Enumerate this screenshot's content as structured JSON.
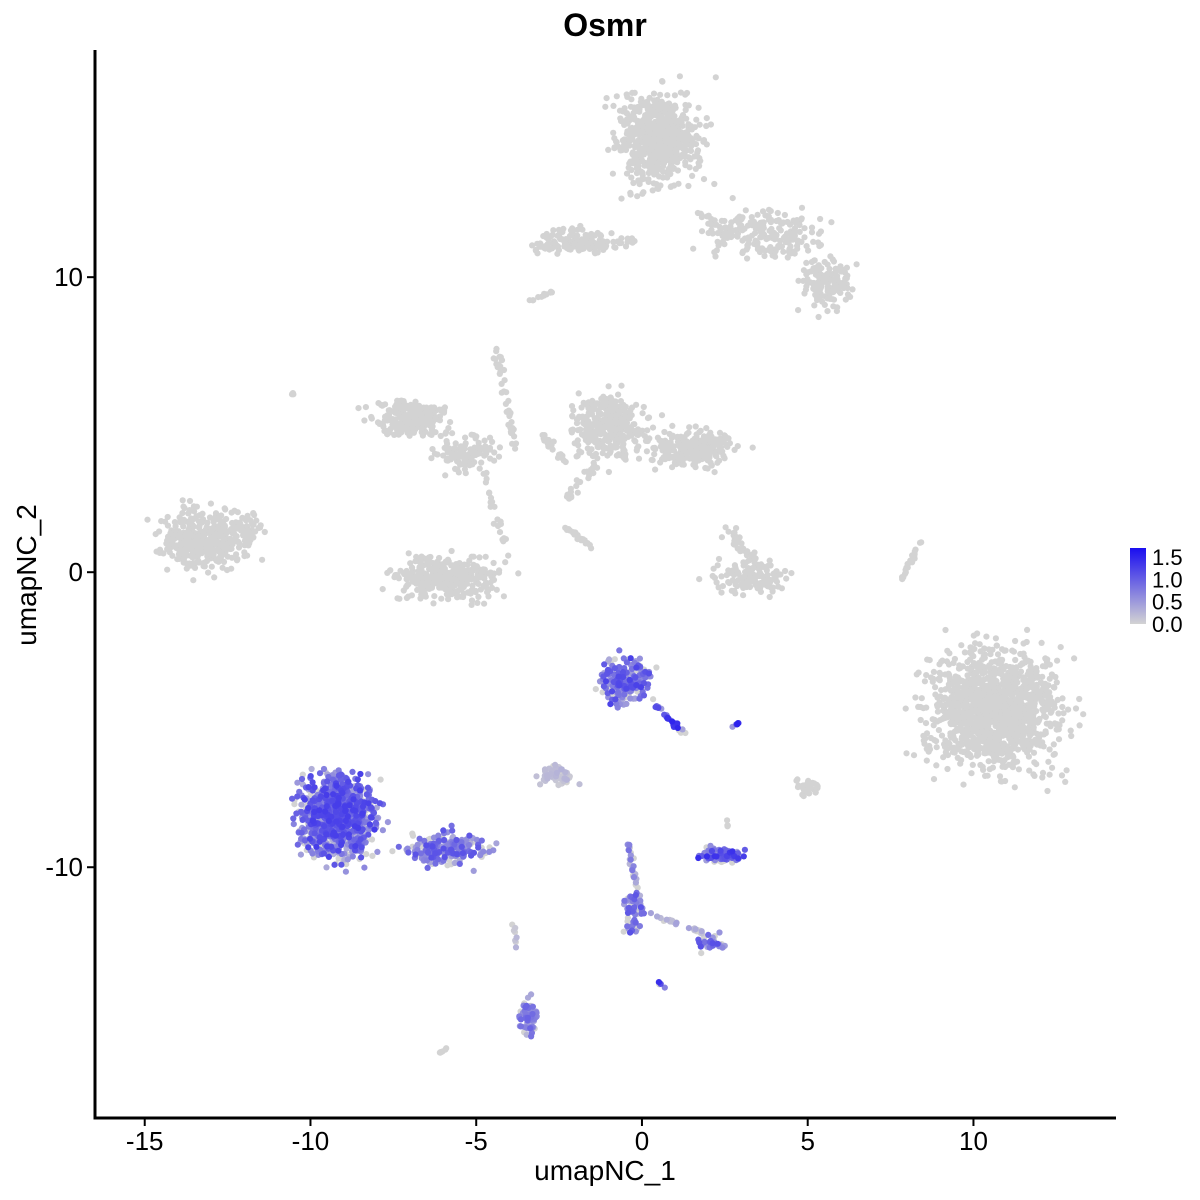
{
  "chart_data": {
    "type": "scatter",
    "title": "Osmr",
    "xlabel": "umapNC_1",
    "ylabel": "umapNC_2",
    "xlim": [
      -16.5,
      14.3
    ],
    "ylim": [
      -18.5,
      17.7
    ],
    "xticks": [
      -15,
      -10,
      -5,
      0,
      5,
      10
    ],
    "xtick_labels": [
      "-15",
      "-10",
      "-5",
      "0",
      "5",
      "10"
    ],
    "yticks": [
      -10,
      0,
      10
    ],
    "ytick_labels": [
      "-10",
      "0",
      "10"
    ],
    "grid": false,
    "legend": {
      "type": "colorbar",
      "placement": "right",
      "min": 0,
      "max": 1.7,
      "ticks": [
        1.5,
        1.0,
        0.5,
        0.0
      ],
      "tick_labels": [
        "1.5",
        "1.0",
        "0.5",
        "0.0"
      ],
      "color_low": "#d3d3d3",
      "color_high": "#1a0ef0"
    },
    "colors": {
      "low": "#d3d3d3",
      "high": "#1a0ef0",
      "axis": "#000000"
    },
    "clusters": [
      {
        "cx": 0.5,
        "cy": 14.7,
        "sx": 1.1,
        "sy": 1.2,
        "n": 650,
        "expr": 0
      },
      {
        "cx": 3.7,
        "cy": 11.5,
        "sx": 1.4,
        "sy": 0.7,
        "n": 180,
        "expr": 0
      },
      {
        "cx": 5.6,
        "cy": 9.8,
        "sx": 0.6,
        "sy": 0.7,
        "n": 130,
        "expr": 0
      },
      {
        "cx": -2.0,
        "cy": 11.2,
        "sx": 1.0,
        "sy": 0.35,
        "n": 110,
        "expr": 0
      },
      {
        "cx": -13.3,
        "cy": 1.1,
        "sx": 1.0,
        "sy": 0.8,
        "n": 420,
        "expr": 0
      },
      {
        "cx": -12.0,
        "cy": 1.4,
        "sx": 0.5,
        "sy": 0.6,
        "n": 60,
        "expr": 0
      },
      {
        "cx": -7.0,
        "cy": 5.2,
        "sx": 0.9,
        "sy": 0.5,
        "n": 240,
        "expr": 0
      },
      {
        "cx": -5.3,
        "cy": 4.0,
        "sx": 0.8,
        "sy": 0.5,
        "n": 110,
        "expr": 0
      },
      {
        "cx": -5.9,
        "cy": -0.2,
        "sx": 1.3,
        "sy": 0.55,
        "n": 380,
        "expr": 0
      },
      {
        "cx": -1.0,
        "cy": 4.9,
        "sx": 0.9,
        "sy": 0.9,
        "n": 330,
        "expr": 0
      },
      {
        "cx": 1.5,
        "cy": 4.2,
        "sx": 1.1,
        "sy": 0.55,
        "n": 250,
        "expr": 0
      },
      {
        "cx": 3.3,
        "cy": -0.2,
        "sx": 0.9,
        "sy": 0.45,
        "n": 140,
        "expr": 0
      },
      {
        "cx": 10.6,
        "cy": -4.6,
        "sx": 1.6,
        "sy": 1.6,
        "n": 1300,
        "expr": 0
      },
      {
        "cx": -0.5,
        "cy": -3.7,
        "sx": 0.6,
        "sy": 0.6,
        "n": 230,
        "expr": 0.45
      },
      {
        "cx": -9.2,
        "cy": -8.3,
        "sx": 0.9,
        "sy": 1.1,
        "n": 1100,
        "expr": 0.45
      },
      {
        "cx": -6.0,
        "cy": -9.4,
        "sx": 1.0,
        "sy": 0.45,
        "n": 230,
        "expr": 0.4
      },
      {
        "cx": 2.4,
        "cy": -9.6,
        "sx": 0.55,
        "sy": 0.22,
        "n": 110,
        "expr": 0.5
      },
      {
        "cx": -2.6,
        "cy": -6.9,
        "sx": 0.4,
        "sy": 0.3,
        "n": 60,
        "expr": 0.1
      },
      {
        "cx": -3.4,
        "cy": -15.1,
        "sx": 0.2,
        "sy": 0.6,
        "n": 70,
        "expr": 0.35
      },
      {
        "cx": 2.1,
        "cy": -12.6,
        "sx": 0.35,
        "sy": 0.25,
        "n": 40,
        "expr": 0.4
      },
      {
        "cx": -0.3,
        "cy": -11.5,
        "sx": 0.25,
        "sy": 0.7,
        "n": 55,
        "expr": 0.4
      },
      {
        "cx": 5.0,
        "cy": -7.3,
        "sx": 0.35,
        "sy": 0.3,
        "n": 25,
        "expr": 0
      }
    ],
    "streaks": [
      {
        "x0": -3.2,
        "y0": 11.0,
        "x1": -0.2,
        "y1": 11.2,
        "n": 45,
        "spread": 0.15,
        "expr": 0
      },
      {
        "x0": 1.7,
        "y0": 12.2,
        "x1": 2.8,
        "y1": 11.3,
        "n": 30,
        "spread": 0.2,
        "expr": 0
      },
      {
        "x0": -4.4,
        "y0": 7.6,
        "x1": -3.8,
        "y1": 4.2,
        "n": 40,
        "spread": 0.12,
        "expr": 0
      },
      {
        "x0": -4.8,
        "y0": 3.4,
        "x1": -4.0,
        "y1": 0.5,
        "n": 25,
        "spread": 0.12,
        "expr": 0
      },
      {
        "x0": -3.0,
        "y0": 4.7,
        "x1": -2.3,
        "y1": 3.7,
        "n": 18,
        "spread": 0.12,
        "expr": 0
      },
      {
        "x0": -2.3,
        "y0": 2.5,
        "x1": -1.2,
        "y1": 3.8,
        "n": 22,
        "spread": 0.12,
        "expr": 0
      },
      {
        "x0": -2.4,
        "y0": 1.6,
        "x1": -1.3,
        "y1": 0.7,
        "n": 22,
        "spread": 0.08,
        "expr": 0
      },
      {
        "x0": 2.6,
        "y0": 1.4,
        "x1": 3.5,
        "y1": 0.2,
        "n": 40,
        "spread": 0.2,
        "expr": 0
      },
      {
        "x0": 7.8,
        "y0": -0.3,
        "x1": 8.4,
        "y1": 1.0,
        "n": 22,
        "spread": 0.07,
        "expr": 0
      },
      {
        "x0": -3.4,
        "y0": 9.2,
        "x1": -2.7,
        "y1": 9.5,
        "n": 12,
        "spread": 0.05,
        "expr": 0
      },
      {
        "x0": 0.4,
        "y0": -4.5,
        "x1": 1.3,
        "y1": -5.5,
        "n": 30,
        "spread": 0.1,
        "expr": 0.6
      },
      {
        "x0": -0.4,
        "y0": -9.2,
        "x1": 0.0,
        "y1": -11.5,
        "n": 35,
        "spread": 0.08,
        "expr": 0.3
      },
      {
        "x0": 0.3,
        "y0": -11.6,
        "x1": 1.8,
        "y1": -12.2,
        "n": 25,
        "spread": 0.08,
        "expr": 0.15
      },
      {
        "x0": -3.9,
        "y0": -11.8,
        "x1": -3.8,
        "y1": -12.8,
        "n": 8,
        "spread": 0.05,
        "expr": 0.1
      },
      {
        "x0": -6.1,
        "y0": -16.3,
        "x1": -5.8,
        "y1": -16.1,
        "n": 6,
        "spread": 0.04,
        "expr": 0
      },
      {
        "x0": 2.7,
        "y0": -5.2,
        "x1": 3.0,
        "y1": -5.1,
        "n": 6,
        "spread": 0.04,
        "expr": 0.6
      },
      {
        "x0": 0.5,
        "y0": -13.9,
        "x1": 0.7,
        "y1": -14.1,
        "n": 5,
        "spread": 0.03,
        "expr": 0.7
      },
      {
        "x0": -10.6,
        "y0": 6.1,
        "x1": -10.5,
        "y1": 6.0,
        "n": 3,
        "spread": 0.03,
        "expr": 0
      },
      {
        "x0": 2.6,
        "y0": -8.8,
        "x1": 2.6,
        "y1": -8.4,
        "n": 4,
        "spread": 0.05,
        "expr": 0
      }
    ]
  }
}
